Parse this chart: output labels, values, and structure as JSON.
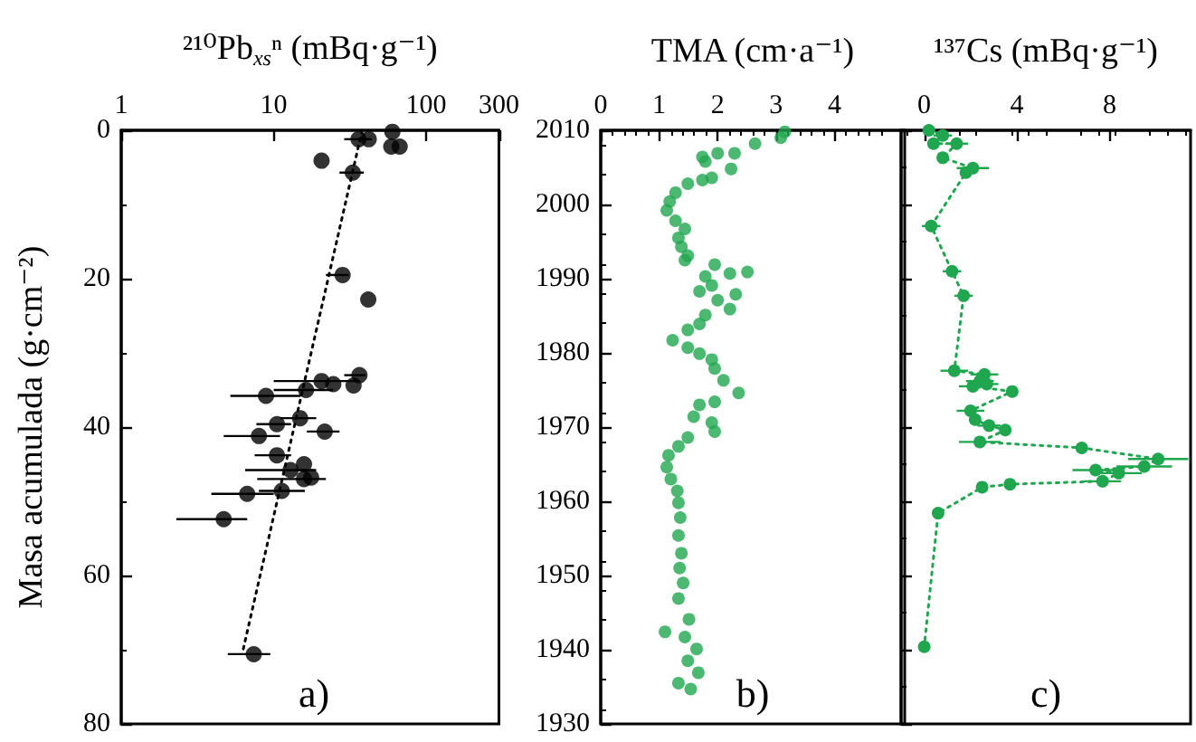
{
  "chart_data": [
    {
      "type": "scatter",
      "xlabel": "²¹⁰Pb$_{xs}$ⁿ (mBq·g⁻¹)",
      "ylabel": "Masa acumulada (g·cm⁻²)",
      "log": "x",
      "xlim": [
        1,
        300
      ],
      "xticks": [
        1,
        10,
        100,
        300
      ],
      "ylim": [
        80,
        0
      ],
      "yticks": [
        0,
        20,
        40,
        60,
        80
      ],
      "marker": "circle",
      "annotations": [
        "a)"
      ],
      "series": [
        {
          "color": "#000000",
          "x": [
            60,
            36,
            42,
            59,
            67,
            20.6,
            33,
            28.3,
            41.7,
            36.5,
            33.4,
            24.6,
            20.6,
            16.3,
            8.9,
            14.9,
            10.5,
            21.6,
            8.0,
            10.5,
            15.8,
            12.9,
            15.8,
            17.6,
            6.7,
            11.3,
            4.7,
            7.4
          ],
          "values": [
            0.2,
            1.2,
            1.2,
            2.2,
            2.2,
            4.1,
            5.7,
            19.5,
            22.8,
            33.0,
            34.4,
            34.2,
            33.8,
            35.0,
            35.8,
            38.8,
            39.6,
            40.6,
            41.2,
            43.8,
            45.0,
            45.8,
            47.0,
            46.8,
            49.0,
            48.6,
            52.4,
            70.6
          ],
          "xerrors": [
            null,
            [
              29,
              44
            ],
            null,
            null,
            null,
            null,
            [
              27,
              39
            ],
            [
              22,
              31
            ],
            null,
            [
              29,
              40
            ],
            null,
            null,
            [
              10,
              35
            ],
            [
              10,
              24.5
            ],
            [
              5.2,
              15
            ],
            [
              11,
              19
            ],
            [
              7.7,
              13
            ],
            [
              16.5,
              27
            ],
            [
              4.7,
              11
            ],
            [
              7.5,
              13
            ],
            null,
            [
              6.5,
              19
            ],
            [
              7.8,
              22
            ],
            null,
            [
              3.9,
              10
            ],
            [
              8,
              16
            ],
            [
              2.3,
              6.7
            ],
            [
              5,
              9.5
            ]
          ]
        },
        {
          "type": "line",
          "color": "#000000",
          "marker": "none",
          "line_style": "dotted",
          "x": [
            38,
            6.3
          ],
          "values": [
            0,
            70
          ]
        }
      ]
    },
    {
      "type": "scatter",
      "xlabel": "TMA (cm·a⁻¹)",
      "xlim": [
        0,
        5.2
      ],
      "xticks": [
        0,
        1,
        2,
        3,
        4
      ],
      "ylim": [
        1930,
        2010
      ],
      "yticks": [
        1930,
        1940,
        1950,
        1960,
        1970,
        1980,
        1990,
        2000,
        2010
      ],
      "marker": "circle",
      "color": "#1fa64f",
      "annotations": [
        "b)"
      ],
      "x": [
        3.15,
        3.08,
        2.64,
        2.29,
        2.0,
        1.74,
        1.79,
        2.23,
        1.9,
        1.74,
        1.49,
        1.28,
        1.18,
        1.13,
        1.28,
        1.44,
        1.33,
        1.38,
        1.49,
        1.44,
        1.95,
        2.51,
        2.21,
        1.79,
        1.9,
        1.69,
        2.31,
        2.0,
        2.21,
        1.79,
        1.69,
        1.49,
        1.23,
        1.49,
        1.69,
        1.9,
        1.95,
        2.1,
        2.36,
        1.95,
        1.69,
        1.59,
        1.9,
        1.95,
        1.49,
        1.33,
        1.16,
        1.13,
        1.2,
        1.31,
        1.33,
        1.36,
        1.33,
        1.38,
        1.35,
        1.41,
        1.33,
        1.51,
        1.1,
        1.44,
        1.64,
        1.49,
        1.67,
        1.33,
        1.54
      ],
      "values": [
        2009.8,
        2009.0,
        2008.2,
        2006.9,
        2006.9,
        2006.4,
        2005.8,
        2004.8,
        2003.6,
        2003.3,
        2002.8,
        2001.6,
        2000.4,
        1999.2,
        1997.8,
        1996.7,
        1995.5,
        1994.3,
        1993.1,
        1992.5,
        1991.9,
        1990.9,
        1990.7,
        1990.3,
        1989.1,
        1988.3,
        1987.9,
        1987.1,
        1985.9,
        1985.1,
        1983.9,
        1983.1,
        1981.7,
        1980.7,
        1979.9,
        1979.1,
        1977.9,
        1976.3,
        1974.6,
        1973.4,
        1973.0,
        1971.4,
        1970.6,
        1969.4,
        1968.6,
        1967.4,
        1966.2,
        1964.6,
        1963.0,
        1961.4,
        1959.8,
        1957.8,
        1955.4,
        1953.0,
        1951.0,
        1949.0,
        1946.9,
        1944.1,
        1942.4,
        1941.7,
        1940.1,
        1938.5,
        1936.9,
        1935.5,
        1934.7
      ]
    },
    {
      "type": "line",
      "xlabel": "¹³⁷Cs (mBq·g⁻¹)",
      "xlim": [
        -1,
        11.5
      ],
      "xticks": [
        0,
        4,
        8
      ],
      "ylim": [
        1930,
        2010
      ],
      "yticks": [
        1930,
        1940,
        1950,
        1960,
        1970,
        1980,
        1990,
        2000,
        2010
      ],
      "tick_labels": "x",
      "marker": "circle",
      "line_style": "dotted",
      "color": "#1fa64f",
      "annotations": [
        "c)"
      ],
      "x": [
        0.2,
        0.8,
        0.4,
        1.4,
        0.8,
        2.1,
        1.8,
        0.3,
        1.2,
        1.7,
        1.3,
        2.6,
        2.4,
        2.7,
        2.1,
        3.8,
        2.0,
        2.2,
        2.8,
        3.5,
        2.4,
        6.8,
        10.1,
        9.5,
        7.4,
        8.4,
        7.7,
        3.7,
        2.5,
        0.6,
        0.0
      ],
      "values": [
        2010.0,
        2009.3,
        2008.2,
        2008.2,
        2006.3,
        2004.9,
        2004.3,
        1997.1,
        1991.0,
        1987.7,
        1977.6,
        1977.1,
        1976.2,
        1975.8,
        1975.5,
        1974.8,
        1972.2,
        1971.0,
        1970.2,
        1969.6,
        1968.0,
        1967.2,
        1965.7,
        1964.7,
        1964.2,
        1963.8,
        1962.7,
        1962.3,
        1961.9,
        1958.4,
        1940.4
      ],
      "xerrors": [
        null,
        0.4,
        null,
        0.5,
        null,
        0.7,
        null,
        0.4,
        0.4,
        0.4,
        0.6,
        0.6,
        0.6,
        0.5,
        0.6,
        null,
        0.6,
        null,
        0.5,
        null,
        0.9,
        null,
        1.3,
        1.2,
        1.0,
        1.0,
        0.8,
        null,
        null,
        null,
        null
      ]
    }
  ]
}
